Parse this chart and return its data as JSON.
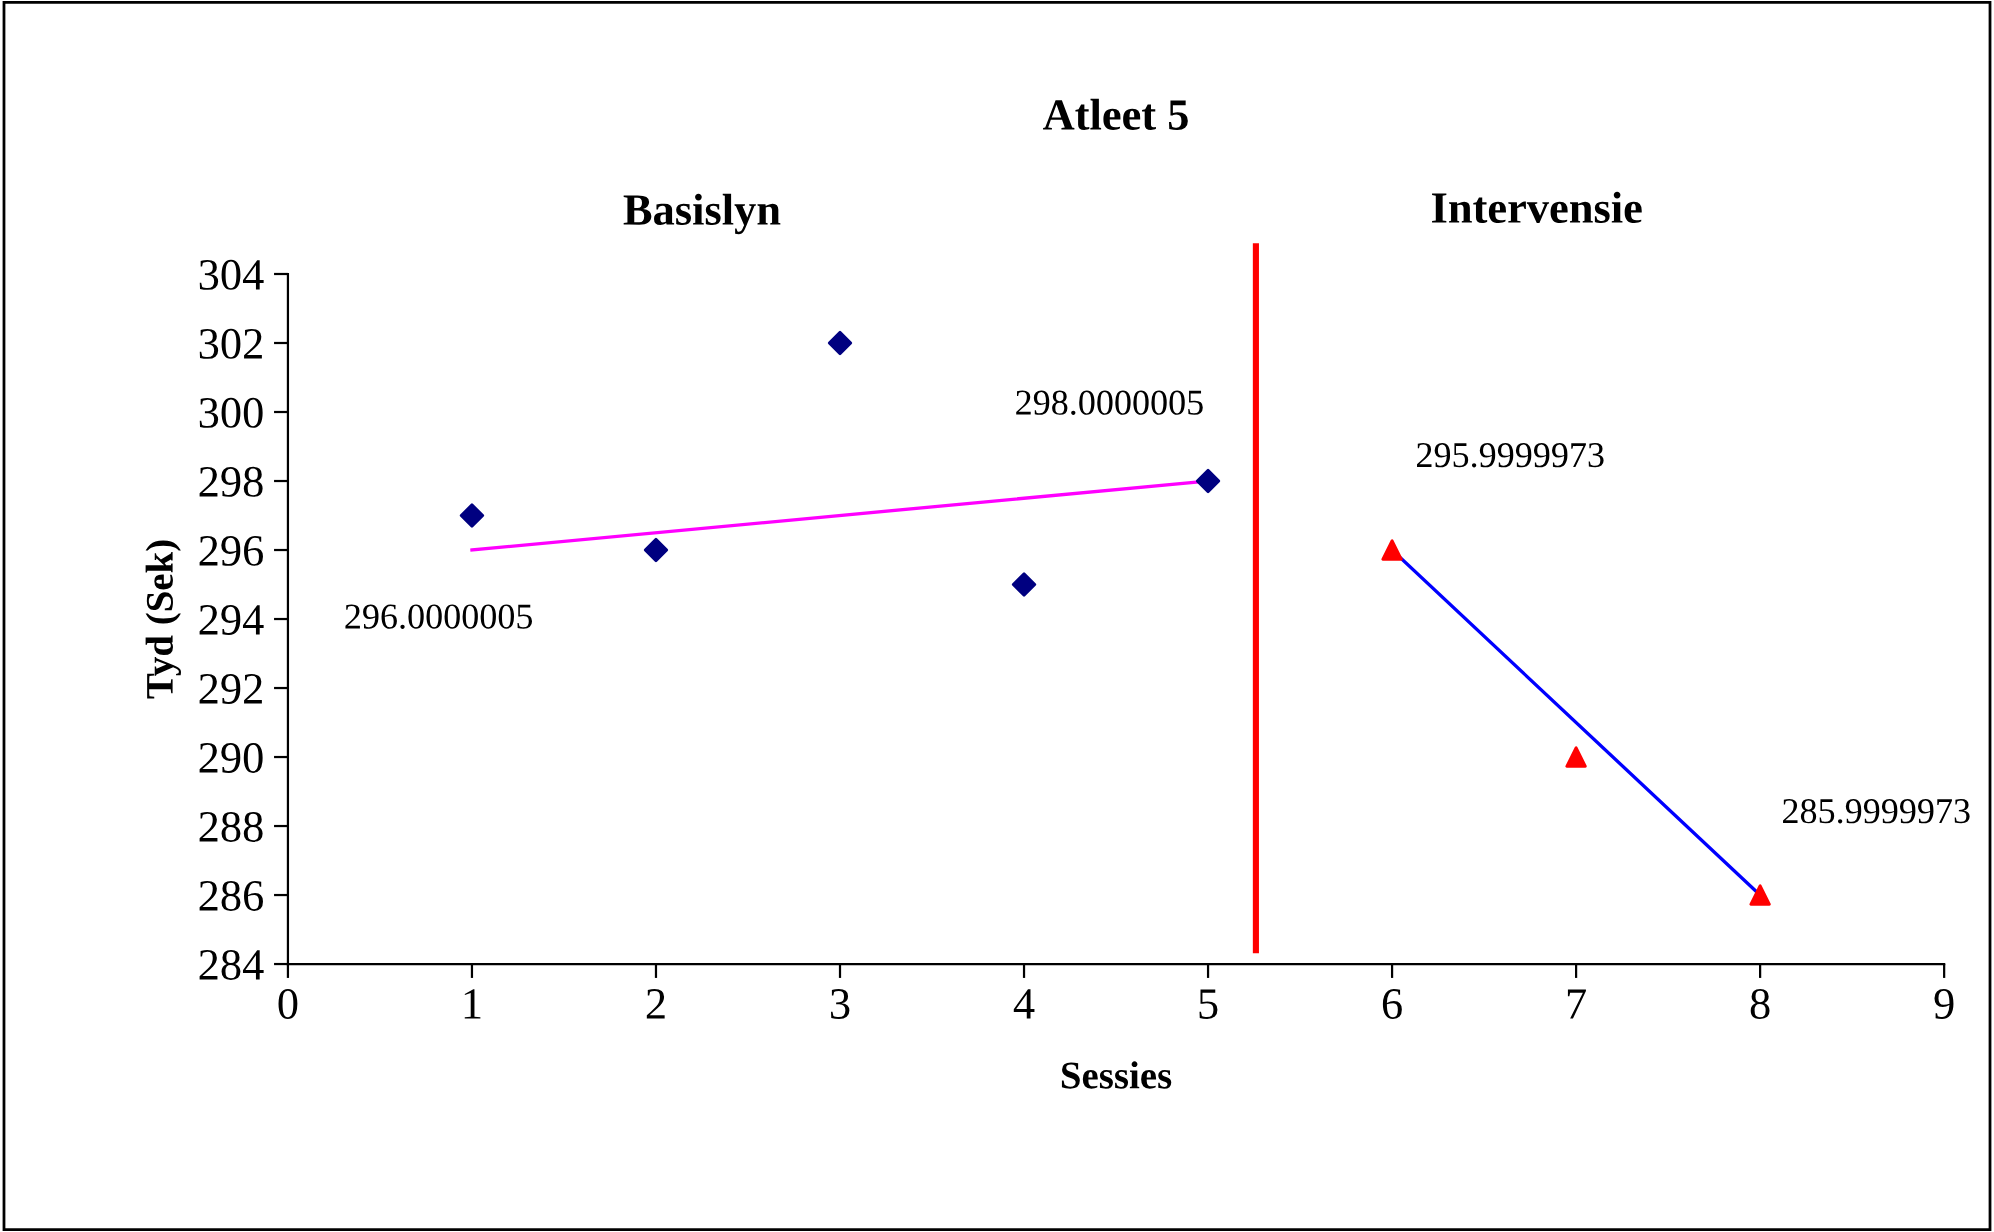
{
  "chart_data": {
    "type": "scatter",
    "title": "Atleet 5",
    "xlabel": "Sessies",
    "ylabel": "Tyd (Sek)",
    "xlim": [
      0,
      9
    ],
    "xticks": [
      0,
      1,
      2,
      3,
      4,
      5,
      6,
      7,
      8,
      9
    ],
    "ylim": [
      284,
      304
    ],
    "yticks": [
      284,
      286,
      288,
      290,
      292,
      294,
      296,
      298,
      300,
      302,
      304
    ],
    "grid": false,
    "legend": false,
    "series": [
      {
        "color": "#000080",
        "marker": "diamond",
        "x": [
          1,
          2,
          3,
          4,
          5
        ],
        "values": [
          297,
          296,
          302,
          295,
          298
        ]
      },
      {
        "type": "line",
        "color": "#ff00ff",
        "marker": "none",
        "x": [
          1,
          5
        ],
        "values": [
          296,
          298
        ]
      },
      {
        "color": "#ff0000",
        "marker": "triangle",
        "x": [
          6,
          7,
          8
        ],
        "values": [
          296,
          290,
          286
        ]
      },
      {
        "type": "line",
        "color": "#0000ff",
        "marker": "none",
        "x": [
          6,
          8
        ],
        "values": [
          296,
          286
        ]
      }
    ],
    "ref_lines": [
      {
        "axis": "x",
        "value": 5.26,
        "color": "#ff0000",
        "line_style": "solid"
      }
    ],
    "annotations": [
      "Basislyn",
      "Intervensie",
      "296.0000005",
      "298.0000005",
      "295.9999973",
      "285.9999973"
    ]
  }
}
